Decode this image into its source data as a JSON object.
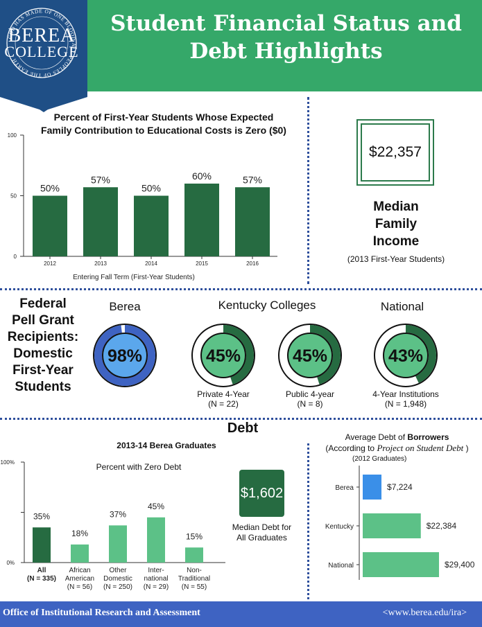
{
  "header": {
    "title": "Student Financial Status and Debt Highlights",
    "logo": {
      "line1": "BEREA",
      "line2": "COLLEGE",
      "motto": "GOD HAS MADE OF ONE BLOOD ALL PEOPLES OF THE EARTH"
    }
  },
  "colors": {
    "header_green": "#35a869",
    "dark_green": "#266b41",
    "medium_green": "#5cc187",
    "blue": "#3e63c2",
    "light_blue": "#5ba7ec",
    "bar_blue": "#3a8fe8"
  },
  "efc_chart": {
    "title_line1": "Percent of First-Year Students Whose Expected",
    "title_line2": "Family Contribution to Educational Costs is Zero ($0)",
    "xlabel": "Entering Fall Term (First-Year Students)"
  },
  "income": {
    "value": "$22,357",
    "label_line1": "Median",
    "label_line2": "Family",
    "label_line3": "Income",
    "note": "(2013 First-Year Students)"
  },
  "pell": {
    "heading_lines": [
      "Federal",
      "Pell Grant",
      "Recipients:",
      "Domestic",
      "First-Year",
      "Students"
    ],
    "group_berea": "Berea",
    "group_kentucky": "Kentucky Colleges",
    "group_national": "National",
    "donuts": [
      {
        "pct_label": "98%",
        "pct": 98,
        "fill": "#3e63c2",
        "inner": "#5ba7ec",
        "caption1": "",
        "caption2": ""
      },
      {
        "pct_label": "45%",
        "pct": 45,
        "fill": "#266b41",
        "inner": "#5cc187",
        "caption1": "Private 4-Year",
        "caption2": "(N = 22)"
      },
      {
        "pct_label": "45%",
        "pct": 45,
        "fill": "#266b41",
        "inner": "#5cc187",
        "caption1": "Public 4-year",
        "caption2": "(N = 8)"
      },
      {
        "pct_label": "43%",
        "pct": 43,
        "fill": "#266b41",
        "inner": "#5cc187",
        "caption1": "4-Year Institutions",
        "caption2": "(N = 1,948)"
      }
    ]
  },
  "debt": {
    "heading": "Debt",
    "subheading": "2013-14 Berea Graduates",
    "zero_debt_title": "Percent with Zero Debt",
    "median_value": "$1,602",
    "median_label_line1": "Median Debt for",
    "median_label_line2": "All Graduates",
    "avg_title_part1": "Average Debt of ",
    "avg_title_bold": "Borrowers",
    "avg_title_line2_part1": "(According to ",
    "avg_title_line2_italic": "Project on Student Debt",
    "avg_title_line2_part2": " )",
    "avg_note": "(2012 Graduates)"
  },
  "chart_data": [
    {
      "type": "bar",
      "title": "Percent of First-Year Students Whose Expected Family Contribution to Educational Costs is Zero ($0)",
      "xlabel": "Entering Fall Term (First-Year Students)",
      "ylabel": "",
      "categories": [
        "2012",
        "2013",
        "2014",
        "2015",
        "2016"
      ],
      "values": [
        50,
        57,
        50,
        60,
        57
      ],
      "data_labels": [
        "50%",
        "57%",
        "50%",
        "60%",
        "57%"
      ],
      "yticks": [
        "0",
        "50",
        "100"
      ],
      "ylim": [
        0,
        100
      ],
      "color": "#266b41"
    },
    {
      "type": "bar",
      "title": "Percent with Zero Debt",
      "categories": [
        [
          "All",
          "(N = 335)"
        ],
        [
          "African",
          "American",
          "(N = 56)"
        ],
        [
          "Other",
          "Domestic",
          "(N = 250)"
        ],
        [
          "Inter-",
          "national",
          "(N = 29)"
        ],
        [
          "Non-",
          "Traditional",
          "(N = 55)"
        ]
      ],
      "values": [
        35,
        18,
        37,
        45,
        15
      ],
      "data_labels": [
        "35%",
        "18%",
        "37%",
        "45%",
        "15%"
      ],
      "yticks": [
        "0%",
        "",
        "100%"
      ],
      "ylim": [
        0,
        100
      ],
      "colors": [
        "#266b41",
        "#5cc187",
        "#5cc187",
        "#5cc187",
        "#5cc187"
      ]
    },
    {
      "type": "bar",
      "orientation": "horizontal",
      "title": "Average Debt of Borrowers (According to Project on Student Debt) (2012 Graduates)",
      "categories": [
        "Berea",
        "Kentucky",
        "National"
      ],
      "values": [
        7224,
        22384,
        29400
      ],
      "data_labels": [
        "$7,224",
        "$22,384",
        "$29,400"
      ],
      "colors": [
        "#3a8fe8",
        "#5cc187",
        "#5cc187"
      ]
    }
  ],
  "footer": {
    "left": "Office of Institutional Research and Assessment",
    "right": "<www.berea.edu/ira>"
  }
}
